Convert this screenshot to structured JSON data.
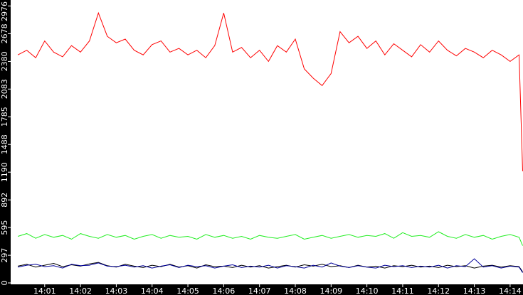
{
  "chart_data": {
    "type": "line",
    "x": [
      0.25,
      0.5,
      0.75,
      1,
      1.25,
      1.5,
      1.75,
      2,
      2.25,
      2.5,
      2.75,
      3,
      3.25,
      3.5,
      3.75,
      4,
      4.25,
      4.5,
      4.75,
      5,
      5.25,
      5.5,
      5.75,
      6,
      6.25,
      6.5,
      6.75,
      7,
      7.25,
      7.5,
      7.75,
      8,
      8.25,
      8.5,
      8.75,
      9,
      9.25,
      9.5,
      9.75,
      10,
      10.25,
      10.5,
      10.75,
      11,
      11.25,
      11.5,
      11.75,
      12,
      12.25,
      12.5,
      12.75,
      13,
      13.25,
      13.5,
      13.75,
      14,
      14.25,
      14.35
    ],
    "series": [
      {
        "name": "red",
        "color": "#ff0000",
        "values": [
          2450,
          2500,
          2420,
          2600,
          2480,
          2430,
          2550,
          2480,
          2600,
          2900,
          2650,
          2580,
          2620,
          2500,
          2450,
          2560,
          2600,
          2480,
          2520,
          2450,
          2500,
          2420,
          2550,
          2900,
          2480,
          2530,
          2420,
          2500,
          2380,
          2550,
          2480,
          2620,
          2300,
          2200,
          2120,
          2250,
          2700,
          2580,
          2650,
          2520,
          2600,
          2450,
          2570,
          2500,
          2430,
          2560,
          2480,
          2600,
          2500,
          2440,
          2520,
          2480,
          2420,
          2500,
          2450,
          2380,
          2450,
          1200
        ]
      },
      {
        "name": "green",
        "color": "#22ee22",
        "values": [
          500,
          530,
          480,
          520,
          490,
          510,
          470,
          530,
          500,
          480,
          520,
          490,
          510,
          470,
          500,
          520,
          480,
          510,
          490,
          500,
          470,
          520,
          490,
          510,
          480,
          500,
          470,
          510,
          490,
          480,
          500,
          520,
          470,
          490,
          510,
          480,
          500,
          520,
          490,
          510,
          500,
          530,
          480,
          540,
          500,
          510,
          490,
          550,
          500,
          480,
          520,
          490,
          510,
          470,
          500,
          520,
          490,
          400
        ]
      },
      {
        "name": "black",
        "color": "#000000",
        "values": [
          180,
          200,
          170,
          190,
          210,
          175,
          195,
          180,
          205,
          220,
          185,
          170,
          200,
          180,
          165,
          190,
          175,
          200,
          170,
          185,
          160,
          195,
          175,
          180,
          165,
          190,
          170,
          185,
          160,
          175,
          190,
          170,
          195,
          180,
          200,
          175,
          185,
          165,
          190,
          170,
          180,
          160,
          185,
          175,
          190,
          170,
          180,
          165,
          190,
          175,
          185,
          160,
          180,
          190,
          170,
          185,
          175,
          120
        ]
      },
      {
        "name": "navy",
        "color": "#000099",
        "values": [
          170,
          190,
          200,
          175,
          185,
          160,
          200,
          185,
          190,
          215,
          180,
          175,
          190,
          170,
          185,
          160,
          180,
          195,
          165,
          190,
          175,
          185,
          160,
          180,
          195,
          165,
          180,
          170,
          190,
          160,
          185,
          175,
          160,
          190,
          170,
          215,
          180,
          165,
          185,
          170,
          160,
          190,
          175,
          185,
          165,
          180,
          170,
          190,
          160,
          185,
          175,
          260,
          170,
          185,
          160,
          180,
          170,
          110
        ]
      }
    ],
    "xlim": [
      0.05,
      14.36
    ],
    "xticks": [
      {
        "value": 1,
        "label": "14:01"
      },
      {
        "value": 2,
        "label": "14:02"
      },
      {
        "value": 3,
        "label": "14:03"
      },
      {
        "value": 4,
        "label": "14:04"
      },
      {
        "value": 5,
        "label": "14:05"
      },
      {
        "value": 6,
        "label": "14:06"
      },
      {
        "value": 7,
        "label": "14:07"
      },
      {
        "value": 8,
        "label": "14:08"
      },
      {
        "value": 9,
        "label": "14:09"
      },
      {
        "value": 10,
        "label": "14:10"
      },
      {
        "value": 11,
        "label": "14:11"
      },
      {
        "value": 12,
        "label": "14:12"
      },
      {
        "value": 13,
        "label": "14:13"
      },
      {
        "value": 14,
        "label": "14:14"
      }
    ],
    "ylim": [
      0,
      3040
    ],
    "yticks": [
      0,
      297,
      595,
      892,
      1190,
      1488,
      1785,
      2083,
      2380,
      2678,
      2976
    ]
  }
}
